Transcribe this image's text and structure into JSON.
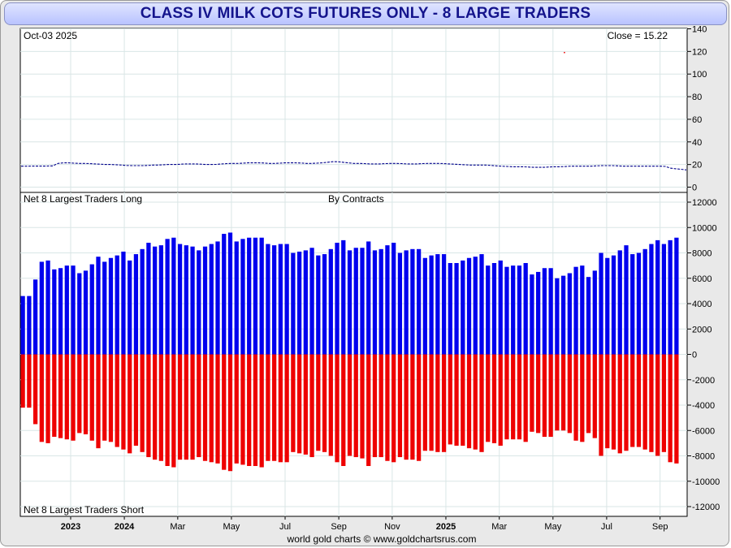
{
  "title": "CLASS IV MILK COTS FUTURES ONLY - 8 LARGE TRADERS",
  "footer": "world gold charts © www.goldchartsrus.com",
  "colors": {
    "long": "#0000ee",
    "short": "#ee0000",
    "price": "#00008b",
    "grid": "#d9e6e6",
    "title_text": "#14148c"
  },
  "chart_data": [
    {
      "type": "line",
      "panel": "price",
      "date_label": "Oct-03  2025",
      "close_label": "Close = 15.22",
      "ylim": [
        0,
        140
      ],
      "y_ticks": [
        "140",
        "120",
        "100",
        "80",
        "60",
        "40",
        "20",
        "0"
      ],
      "values": [
        18.5,
        18.5,
        18.6,
        18.6,
        18.6,
        18.7,
        18.8,
        21.0,
        21.5,
        21.5,
        21.2,
        21.0,
        21.0,
        20.8,
        20.5,
        20.3,
        20.0,
        20.0,
        19.8,
        19.5,
        19.2,
        19.0,
        19.0,
        19.0,
        19.2,
        19.5,
        19.5,
        19.8,
        20.0,
        20.0,
        20.2,
        20.5,
        20.5,
        20.5,
        20.3,
        20.0,
        20.0,
        20.2,
        20.5,
        20.8,
        21.0,
        21.0,
        21.2,
        21.5,
        21.5,
        21.5,
        21.3,
        21.0,
        21.0,
        21.2,
        21.5,
        21.5,
        21.5,
        21.3,
        21.0,
        21.0,
        21.2,
        21.5,
        22.0,
        22.5,
        22.5,
        22.0,
        21.5,
        21.0,
        21.0,
        20.8,
        20.5,
        20.5,
        20.5,
        20.8,
        21.0,
        21.0,
        20.8,
        20.5,
        20.5,
        20.5,
        20.8,
        21.0,
        21.0,
        21.0,
        20.8,
        20.5,
        20.3,
        20.0,
        19.8,
        19.5,
        19.5,
        19.5,
        19.5,
        19.2,
        18.8,
        18.5,
        18.3,
        18.0,
        18.0,
        18.0,
        17.8,
        17.5,
        17.5,
        17.5,
        17.8,
        18.0,
        18.0,
        18.2,
        18.5,
        18.5,
        18.5,
        18.5,
        18.5,
        18.8,
        19.0,
        19.0,
        19.0,
        18.8,
        18.5,
        18.5,
        18.5,
        18.5,
        18.5,
        18.5,
        18.5,
        18.5,
        18.3,
        16.8,
        16.2,
        15.8,
        15.2
      ],
      "outlier": {
        "value": 119,
        "position_fraction": 0.816
      }
    },
    {
      "type": "bar",
      "panel": "positions",
      "subtitle": "By Contracts",
      "long_label": "Net 8 Largest Traders Long",
      "short_label": "Net 8 Largest Traders Short",
      "ylim": [
        -13000,
        12500
      ],
      "y_ticks": [
        "12000",
        "10000",
        "8000",
        "6000",
        "4000",
        "2000",
        "0",
        "-2000",
        "-4000",
        "-6000",
        "-8000",
        "-10000",
        "-12000"
      ],
      "x_labels": [
        "2023",
        "2024",
        "Mar",
        "May",
        "Jul",
        "Sep",
        "Nov",
        "2025",
        "Mar",
        "May",
        "Jul",
        "Sep"
      ],
      "x_label_bold": [
        true,
        true,
        false,
        false,
        false,
        false,
        false,
        true,
        false,
        false,
        false,
        false
      ],
      "x_label_positions": [
        0.0755,
        0.156,
        0.2361,
        0.3166,
        0.3971,
        0.4776,
        0.5577,
        0.6382,
        0.7183,
        0.7988,
        0.8793,
        0.9594
      ],
      "series": [
        {
          "name": "Net 8 Largest Traders Long",
          "values": [
            4600,
            4600,
            5900,
            7300,
            7400,
            6700,
            6800,
            7000,
            7000,
            6400,
            6600,
            7100,
            7700,
            7300,
            7600,
            7800,
            8100,
            7400,
            7900,
            8300,
            8800,
            8500,
            8600,
            9100,
            9200,
            8700,
            8600,
            8500,
            8200,
            8500,
            8700,
            8900,
            9500,
            9600,
            8900,
            9100,
            9200,
            9200,
            9200,
            8700,
            8600,
            8700,
            8700,
            8000,
            8100,
            8200,
            8400,
            7800,
            7900,
            8300,
            8800,
            9000,
            8200,
            8400,
            8400,
            8900,
            8200,
            8300,
            8600,
            8800,
            8000,
            8200,
            8300,
            8300,
            7600,
            7800,
            7900,
            7900,
            7200,
            7200,
            7400,
            7600,
            7700,
            7900,
            7000,
            7200,
            7400,
            6900,
            7000,
            7000,
            7200,
            6300,
            6500,
            6800,
            6800,
            6000,
            6200,
            6400,
            6900,
            7000,
            6100,
            6600,
            8000,
            7600,
            7800,
            8200,
            8600,
            7900,
            8000,
            8300,
            8700,
            9000,
            8700,
            9000,
            9200
          ]
        },
        {
          "name": "Net 8 Largest Traders Short",
          "values": [
            -4200,
            -4200,
            -5500,
            -6900,
            -7000,
            -6500,
            -6600,
            -6700,
            -6800,
            -6200,
            -6300,
            -6800,
            -7400,
            -6800,
            -6900,
            -7300,
            -7500,
            -7800,
            -7200,
            -7700,
            -8100,
            -8300,
            -8400,
            -8800,
            -8900,
            -8300,
            -8300,
            -8300,
            -8100,
            -8400,
            -8500,
            -8600,
            -9100,
            -9200,
            -8600,
            -8700,
            -8800,
            -8800,
            -8900,
            -8400,
            -8400,
            -8500,
            -8500,
            -7700,
            -7800,
            -7900,
            -8100,
            -7600,
            -7700,
            -8000,
            -8500,
            -8800,
            -8000,
            -8100,
            -8200,
            -8800,
            -8100,
            -8100,
            -8400,
            -8500,
            -8100,
            -8300,
            -8300,
            -8400,
            -7600,
            -7600,
            -7700,
            -7700,
            -7100,
            -7200,
            -7200,
            -7400,
            -7500,
            -7700,
            -6900,
            -7000,
            -7200,
            -6700,
            -6700,
            -6700,
            -6900,
            -6100,
            -6200,
            -6500,
            -6500,
            -6000,
            -6000,
            -6200,
            -6800,
            -6900,
            -6200,
            -6600,
            -8000,
            -7400,
            -7500,
            -7800,
            -7600,
            -7300,
            -7300,
            -7500,
            -7700,
            -8000,
            -7700,
            -8500,
            -8600
          ]
        }
      ]
    }
  ]
}
